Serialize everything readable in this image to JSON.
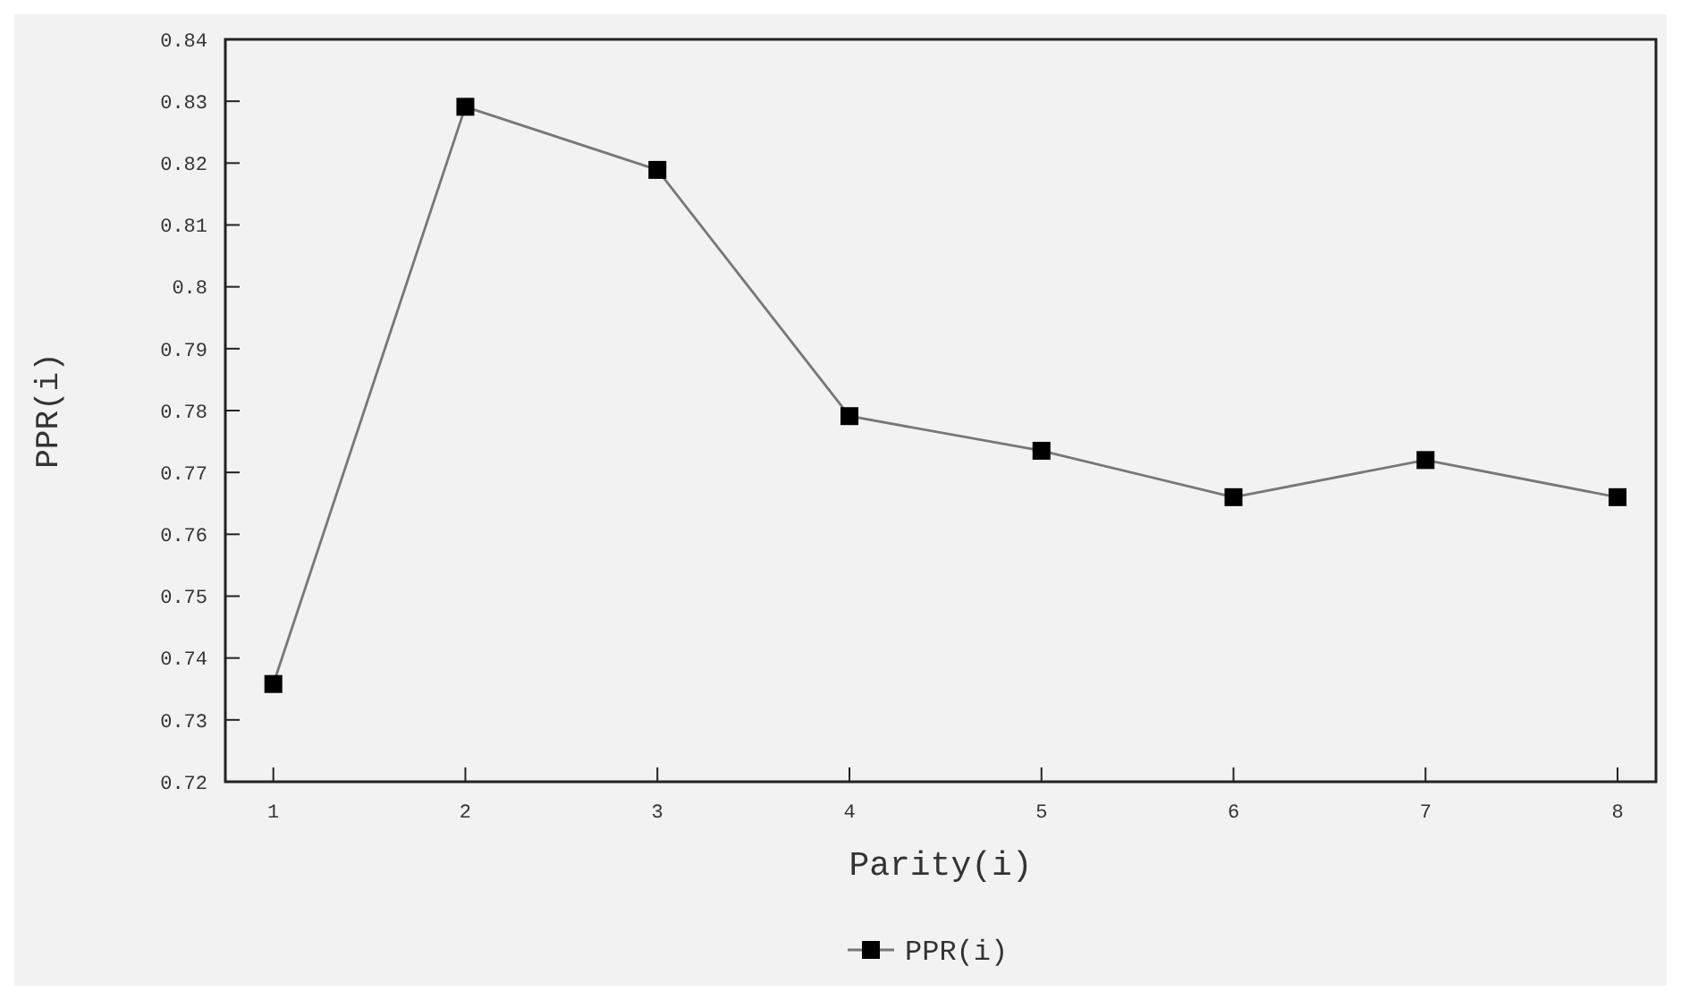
{
  "chart_data": {
    "type": "line",
    "xlabel": "Parity(i)",
    "ylabel": "PPR(i)",
    "x": [
      1,
      2,
      3,
      4,
      5,
      6,
      7,
      8
    ],
    "series": [
      {
        "name": "PPR(i)",
        "color": "#000000",
        "values": [
          0.7358,
          0.8291,
          0.8189,
          0.7791,
          0.7735,
          0.766,
          0.772,
          0.766
        ]
      }
    ],
    "xlim": [
      0.75,
      8.2
    ],
    "xticks": [
      1,
      2,
      3,
      4,
      5,
      6,
      7,
      8
    ],
    "ylim": [
      0.72,
      0.84
    ],
    "yticks": [
      0.72,
      0.73,
      0.74,
      0.75,
      0.76,
      0.77,
      0.78,
      0.79,
      0.8,
      0.81,
      0.82,
      0.83,
      0.84
    ],
    "grid": false,
    "legend": "bottom",
    "marker": "square",
    "line_style": "solid"
  }
}
